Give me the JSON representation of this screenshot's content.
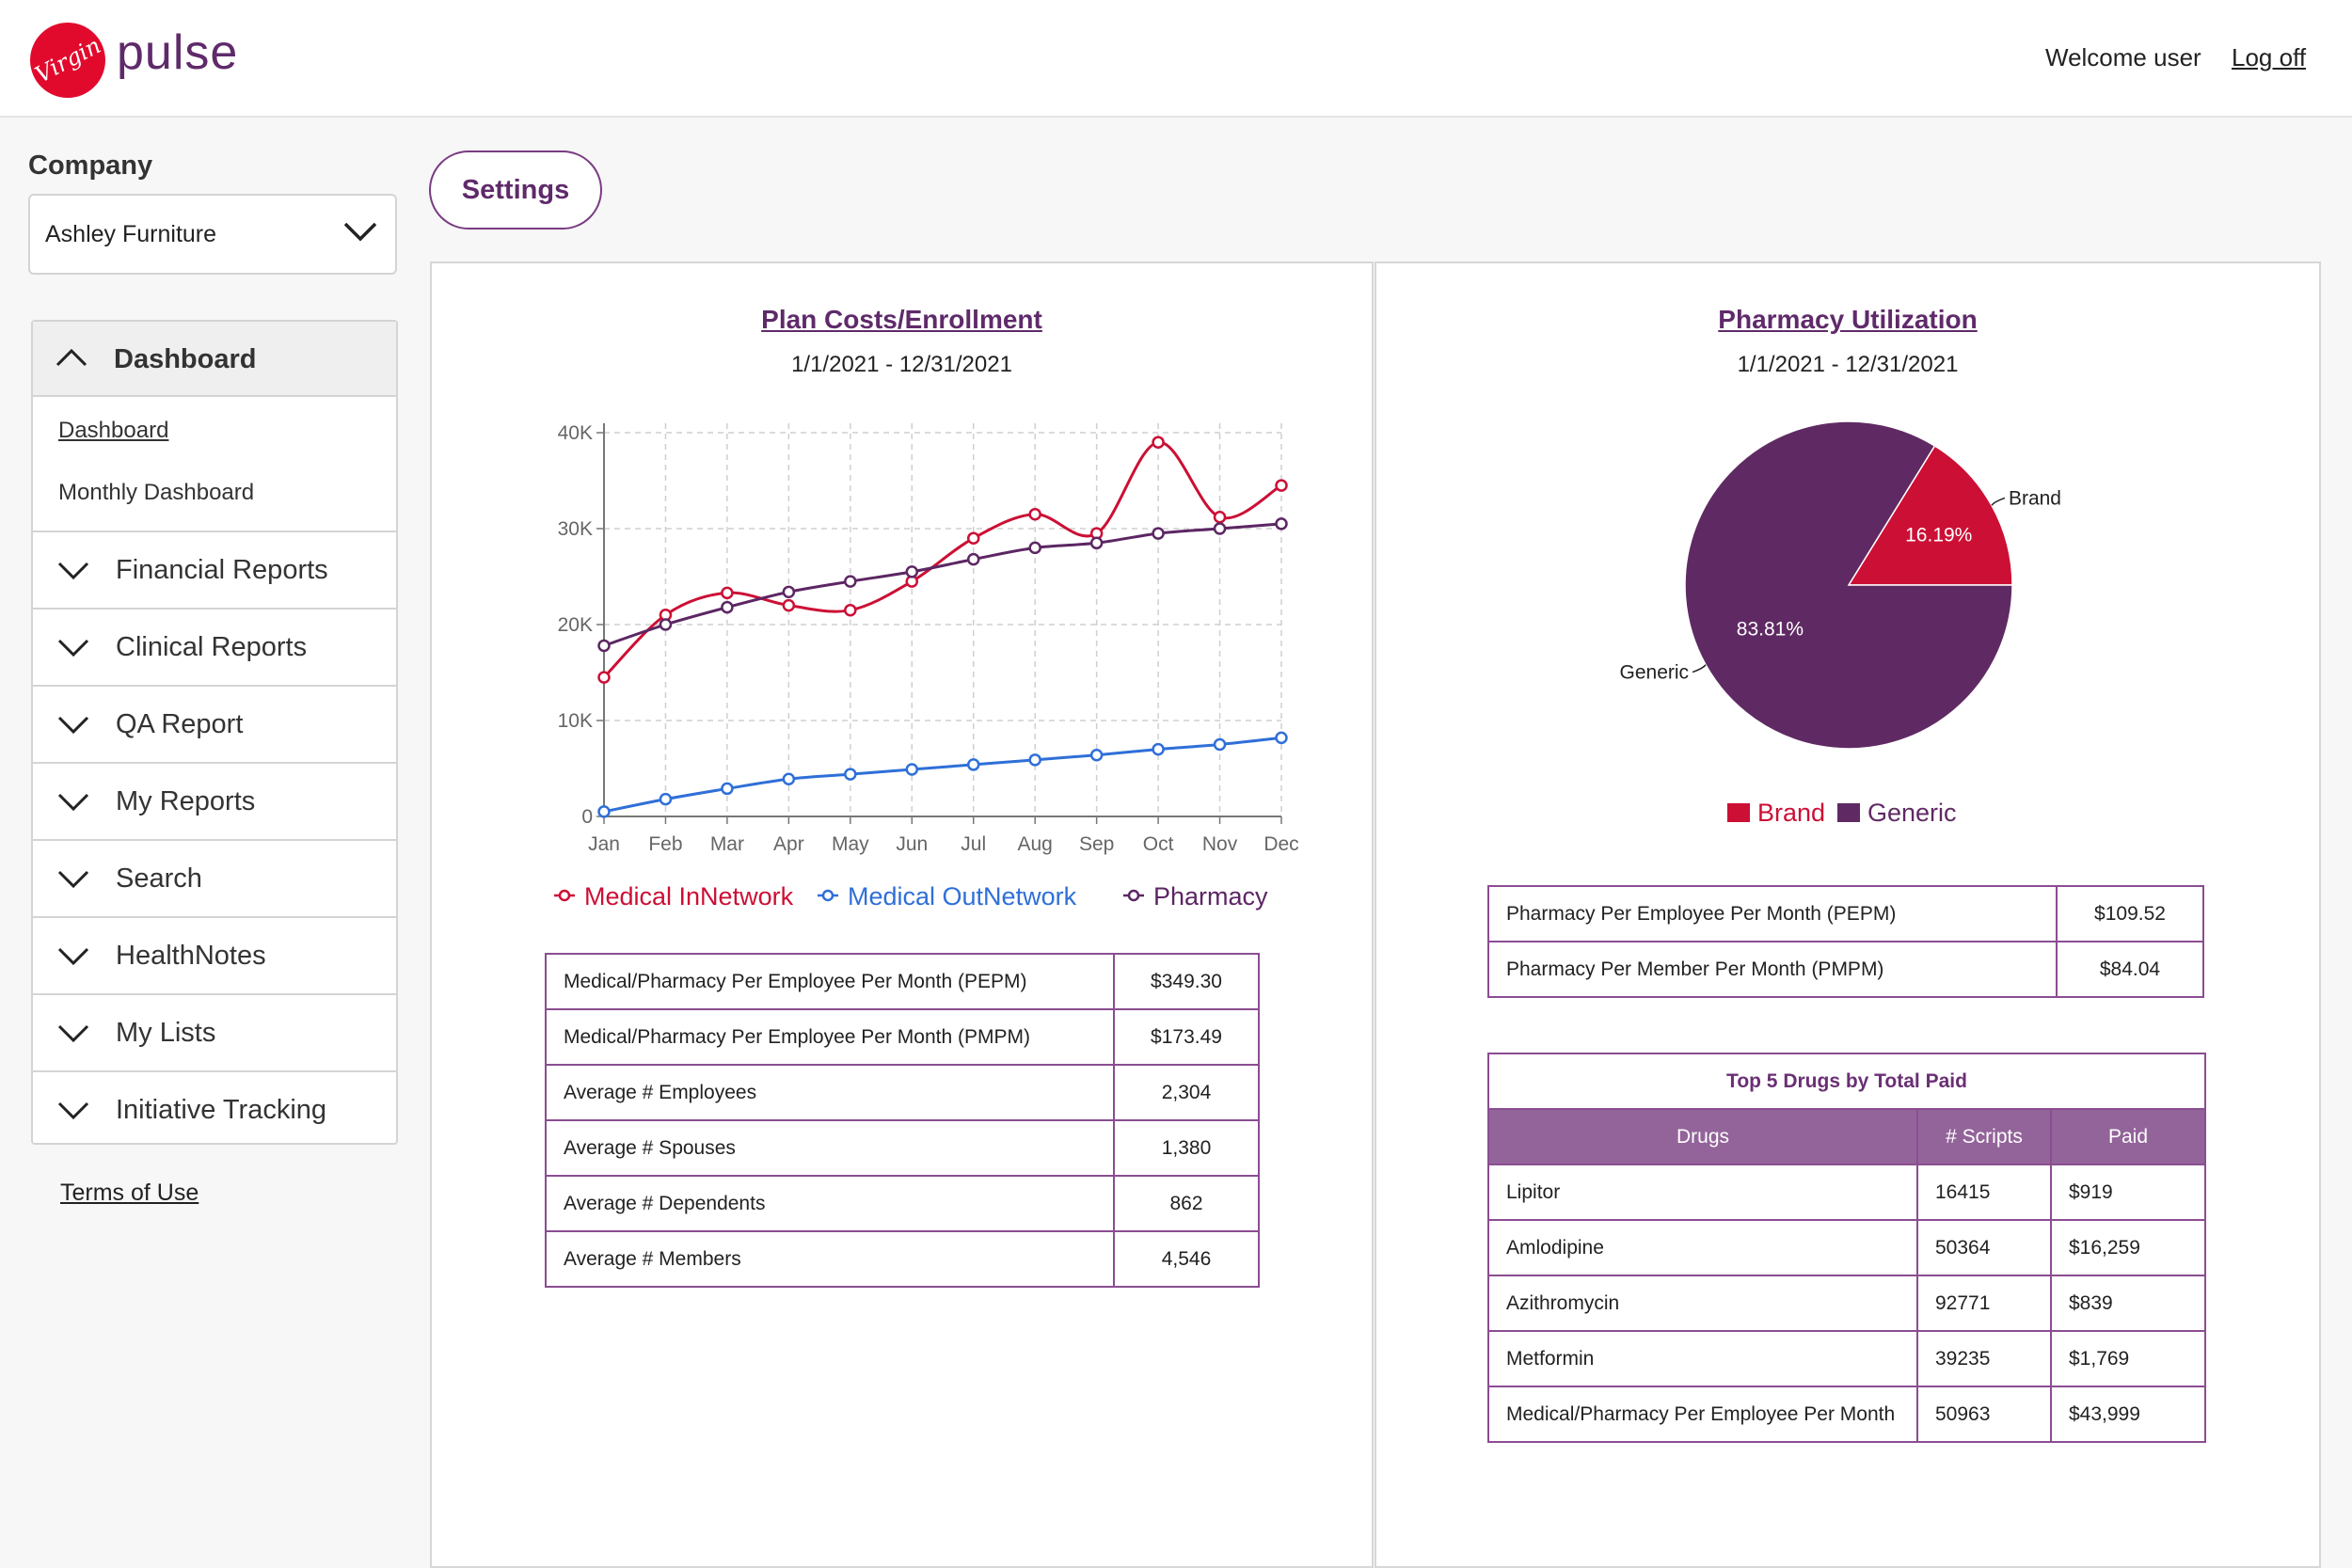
{
  "header": {
    "logo_text": "Virgin",
    "brand": "pulse",
    "welcome": "Welcome user",
    "logoff": "Log off"
  },
  "sidebar": {
    "company_label": "Company",
    "company_value": "Ashley Furniture",
    "section_title": "Dashboard",
    "sub_items": [
      "Dashboard",
      "Monthly Dashboard"
    ],
    "items": [
      "Financial Reports",
      "Clinical Reports",
      "QA Report",
      "My Reports",
      "Search",
      "HealthNotes",
      "My Lists",
      "Initiative Tracking"
    ],
    "terms": "Terms of Use"
  },
  "settings_label": "Settings",
  "plan_panel": {
    "title": "Plan Costs/Enrollment",
    "date_range": "1/1/2021 - 12/31/2021",
    "metrics": [
      {
        "label": "Medical/Pharmacy Per Employee Per Month (PEPM)",
        "value": "$349.30"
      },
      {
        "label": "Medical/Pharmacy Per Employee Per Month (PMPM)",
        "value": "$173.49"
      },
      {
        "label": "Average # Employees",
        "value": "2,304"
      },
      {
        "label": "Average # Spouses",
        "value": "1,380"
      },
      {
        "label": "Average # Dependents",
        "value": "862"
      },
      {
        "label": "Average # Members",
        "value": "4,546"
      }
    ]
  },
  "pharmacy_panel": {
    "title": "Pharmacy Utilization",
    "date_range": "1/1/2021 - 12/31/2021",
    "metrics": [
      {
        "label": "Pharmacy Per Employee Per Month (PEPM)",
        "value": "$109.52"
      },
      {
        "label": "Pharmacy Per Member Per Month (PMPM)",
        "value": "$84.04"
      }
    ],
    "drugs_caption": "Top 5 Drugs by Total Paid",
    "drugs_headers": [
      "Drugs",
      "# Scripts",
      "Paid"
    ],
    "drugs": [
      {
        "name": "Lipitor",
        "scripts": "16415",
        "paid": "$919"
      },
      {
        "name": "Amlodipine",
        "scripts": "50364",
        "paid": "$16,259"
      },
      {
        "name": "Azithromycin",
        "scripts": "92771",
        "paid": "$839"
      },
      {
        "name": "Metformin",
        "scripts": "39235",
        "paid": "$1,769"
      },
      {
        "name": "Medical/Pharmacy Per Employee Per Month",
        "scripts": "50963",
        "paid": "$43,999"
      }
    ]
  },
  "chart_data": [
    {
      "type": "line",
      "x": [
        "Jan",
        "Feb",
        "Mar",
        "Apr",
        "May",
        "Jun",
        "Jul",
        "Aug",
        "Sep",
        "Oct",
        "Nov",
        "Dec"
      ],
      "y_ticks": [
        "0",
        "10K",
        "20K",
        "30K",
        "40K"
      ],
      "ylim": [
        0,
        40000
      ],
      "grid": true,
      "legend_position": "bottom",
      "series": [
        {
          "name": "Medical InNetwork",
          "color": "#cc0f35",
          "values": [
            14500,
            21000,
            23300,
            22000,
            21500,
            24500,
            29000,
            31500,
            29500,
            39000,
            31200,
            34500
          ]
        },
        {
          "name": "Medical OutNetwork",
          "color": "#2f6fd8",
          "values": [
            500,
            1800,
            2900,
            3900,
            4400,
            4900,
            5400,
            5900,
            6400,
            7000,
            7500,
            8200
          ]
        },
        {
          "name": "Pharmacy",
          "color": "#5c2663",
          "values": [
            17800,
            20000,
            21800,
            23400,
            24500,
            25500,
            26800,
            28000,
            28500,
            29500,
            30000,
            30500
          ]
        }
      ]
    },
    {
      "type": "pie",
      "categories": [
        "Brand",
        "Generic"
      ],
      "values": [
        16.19,
        83.81
      ],
      "labels": [
        "16.19%",
        "83.81%"
      ],
      "colors": [
        "#cc0f35",
        "#5f2a63"
      ],
      "legend_position": "bottom"
    }
  ]
}
